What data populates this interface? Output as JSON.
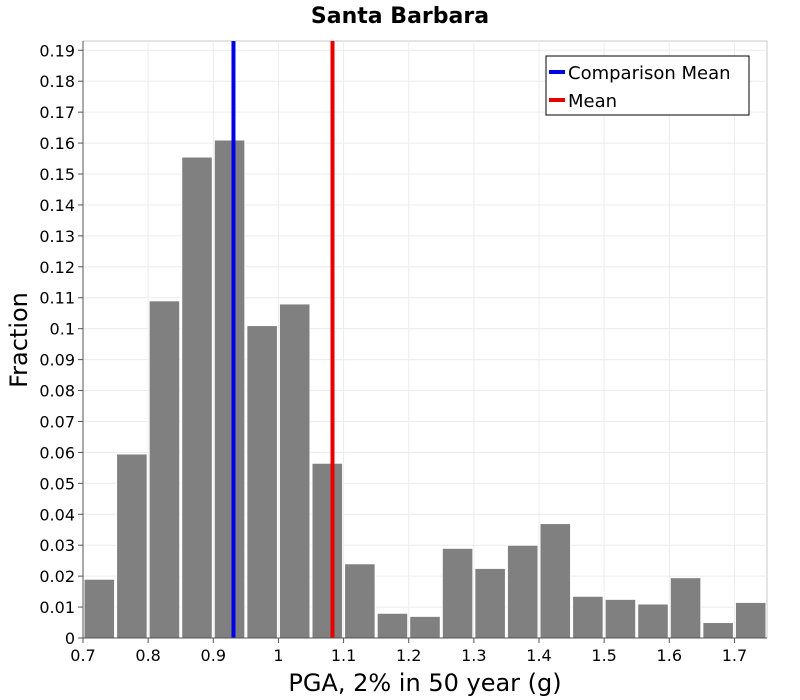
{
  "chart_data": {
    "type": "bar",
    "title": "Santa Barbara",
    "xlabel": "PGA, 2% in 50 year (g)",
    "ylabel": "Fraction",
    "xlim": [
      0.7,
      1.75
    ],
    "ylim": [
      0,
      0.193
    ],
    "grid": true,
    "bin_width": 0.05,
    "x_ticks": [
      "0.7",
      "0.8",
      "0.9",
      "1",
      "1.1",
      "1.2",
      "1.3",
      "1.4",
      "1.5",
      "1.6",
      "1.7"
    ],
    "y_ticks": [
      "0",
      "0.01",
      "0.02",
      "0.03",
      "0.04",
      "0.05",
      "0.06",
      "0.07",
      "0.08",
      "0.09",
      "0.1",
      "0.11",
      "0.12",
      "0.13",
      "0.14",
      "0.15",
      "0.16",
      "0.17",
      "0.18",
      "0.19"
    ],
    "bins": [
      0.7,
      0.75,
      0.8,
      0.85,
      0.9,
      0.95,
      1.0,
      1.05,
      1.1,
      1.15,
      1.2,
      1.25,
      1.3,
      1.35,
      1.4,
      1.45,
      1.5,
      1.55,
      1.6,
      1.65,
      1.7
    ],
    "values": [
      0.019,
      0.0595,
      0.109,
      0.1555,
      0.161,
      0.101,
      0.108,
      0.0565,
      0.024,
      0.008,
      0.007,
      0.029,
      0.0225,
      0.03,
      0.037,
      0.0135,
      0.0125,
      0.011,
      0.0195,
      0.005,
      0.0115
    ],
    "bar_color": "#808080",
    "vlines": [
      {
        "name": "Comparison Mean",
        "x": 0.931,
        "color": "#0000e6"
      },
      {
        "name": "Mean",
        "x": 1.083,
        "color": "#e60000"
      }
    ],
    "legend_position": "top-right"
  }
}
